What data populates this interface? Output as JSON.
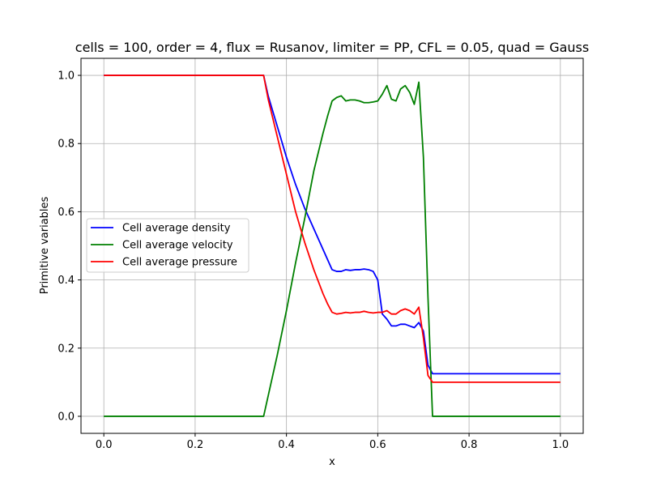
{
  "chart_data": {
    "type": "line",
    "title": "cells = 100, order = 4, flux = Rusanov, limiter = PP, CFL = 0.05, quad = Gauss",
    "xlabel": "x",
    "ylabel": "Primitive variables",
    "xlim": [
      -0.05,
      1.05
    ],
    "ylim": [
      -0.05,
      1.05
    ],
    "xticks": [
      0.0,
      0.2,
      0.4,
      0.6,
      0.8,
      1.0
    ],
    "yticks": [
      0.0,
      0.2,
      0.4,
      0.6,
      0.8,
      1.0
    ],
    "xtick_labels": [
      "0.0",
      "0.2",
      "0.4",
      "0.6",
      "0.8",
      "1.0"
    ],
    "ytick_labels": [
      "0.0",
      "0.2",
      "0.4",
      "0.6",
      "0.8",
      "1.0"
    ],
    "grid": true,
    "legend_position": "center-left",
    "series": [
      {
        "name": "Cell average density",
        "color": "#0000ff",
        "points": [
          [
            0.0,
            1.0
          ],
          [
            0.1,
            1.0
          ],
          [
            0.2,
            1.0
          ],
          [
            0.3,
            1.0
          ],
          [
            0.34,
            1.0
          ],
          [
            0.35,
            1.0
          ],
          [
            0.36,
            0.94
          ],
          [
            0.38,
            0.85
          ],
          [
            0.4,
            0.76
          ],
          [
            0.42,
            0.68
          ],
          [
            0.44,
            0.61
          ],
          [
            0.46,
            0.55
          ],
          [
            0.48,
            0.49
          ],
          [
            0.49,
            0.46
          ],
          [
            0.5,
            0.43
          ],
          [
            0.51,
            0.425
          ],
          [
            0.52,
            0.425
          ],
          [
            0.53,
            0.43
          ],
          [
            0.54,
            0.428
          ],
          [
            0.55,
            0.43
          ],
          [
            0.56,
            0.43
          ],
          [
            0.57,
            0.432
          ],
          [
            0.58,
            0.43
          ],
          [
            0.59,
            0.425
          ],
          [
            0.6,
            0.4
          ],
          [
            0.61,
            0.3
          ],
          [
            0.62,
            0.285
          ],
          [
            0.63,
            0.265
          ],
          [
            0.64,
            0.265
          ],
          [
            0.65,
            0.27
          ],
          [
            0.66,
            0.27
          ],
          [
            0.67,
            0.265
          ],
          [
            0.68,
            0.26
          ],
          [
            0.69,
            0.275
          ],
          [
            0.7,
            0.25
          ],
          [
            0.71,
            0.15
          ],
          [
            0.72,
            0.125
          ],
          [
            0.73,
            0.125
          ],
          [
            0.8,
            0.125
          ],
          [
            0.9,
            0.125
          ],
          [
            1.0,
            0.125
          ]
        ]
      },
      {
        "name": "Cell average velocity",
        "color": "#008000",
        "points": [
          [
            0.0,
            0.0
          ],
          [
            0.1,
            0.0
          ],
          [
            0.2,
            0.0
          ],
          [
            0.3,
            0.0
          ],
          [
            0.34,
            0.0
          ],
          [
            0.35,
            0.0
          ],
          [
            0.36,
            0.06
          ],
          [
            0.38,
            0.18
          ],
          [
            0.4,
            0.31
          ],
          [
            0.42,
            0.45
          ],
          [
            0.44,
            0.58
          ],
          [
            0.46,
            0.72
          ],
          [
            0.48,
            0.83
          ],
          [
            0.49,
            0.88
          ],
          [
            0.5,
            0.925
          ],
          [
            0.51,
            0.935
          ],
          [
            0.52,
            0.94
          ],
          [
            0.53,
            0.925
          ],
          [
            0.54,
            0.928
          ],
          [
            0.55,
            0.928
          ],
          [
            0.56,
            0.925
          ],
          [
            0.57,
            0.92
          ],
          [
            0.58,
            0.92
          ],
          [
            0.59,
            0.922
          ],
          [
            0.6,
            0.925
          ],
          [
            0.61,
            0.945
          ],
          [
            0.62,
            0.97
          ],
          [
            0.63,
            0.93
          ],
          [
            0.64,
            0.925
          ],
          [
            0.65,
            0.96
          ],
          [
            0.66,
            0.97
          ],
          [
            0.67,
            0.95
          ],
          [
            0.68,
            0.915
          ],
          [
            0.69,
            0.98
          ],
          [
            0.7,
            0.76
          ],
          [
            0.71,
            0.35
          ],
          [
            0.72,
            0.0
          ],
          [
            0.73,
            0.0
          ],
          [
            0.8,
            0.0
          ],
          [
            0.9,
            0.0
          ],
          [
            1.0,
            0.0
          ]
        ]
      },
      {
        "name": "Cell average pressure",
        "color": "#ff0000",
        "points": [
          [
            0.0,
            1.0
          ],
          [
            0.1,
            1.0
          ],
          [
            0.2,
            1.0
          ],
          [
            0.3,
            1.0
          ],
          [
            0.34,
            1.0
          ],
          [
            0.35,
            1.0
          ],
          [
            0.36,
            0.93
          ],
          [
            0.38,
            0.82
          ],
          [
            0.4,
            0.71
          ],
          [
            0.42,
            0.6
          ],
          [
            0.44,
            0.51
          ],
          [
            0.46,
            0.43
          ],
          [
            0.48,
            0.36
          ],
          [
            0.49,
            0.33
          ],
          [
            0.5,
            0.305
          ],
          [
            0.51,
            0.3
          ],
          [
            0.52,
            0.302
          ],
          [
            0.53,
            0.305
          ],
          [
            0.54,
            0.303
          ],
          [
            0.55,
            0.305
          ],
          [
            0.56,
            0.305
          ],
          [
            0.57,
            0.308
          ],
          [
            0.58,
            0.305
          ],
          [
            0.59,
            0.303
          ],
          [
            0.6,
            0.305
          ],
          [
            0.61,
            0.305
          ],
          [
            0.62,
            0.31
          ],
          [
            0.63,
            0.3
          ],
          [
            0.64,
            0.3
          ],
          [
            0.65,
            0.31
          ],
          [
            0.66,
            0.315
          ],
          [
            0.67,
            0.31
          ],
          [
            0.68,
            0.3
          ],
          [
            0.69,
            0.32
          ],
          [
            0.7,
            0.23
          ],
          [
            0.71,
            0.12
          ],
          [
            0.72,
            0.1
          ],
          [
            0.73,
            0.1
          ],
          [
            0.8,
            0.1
          ],
          [
            0.9,
            0.1
          ],
          [
            1.0,
            0.1
          ]
        ]
      }
    ]
  }
}
